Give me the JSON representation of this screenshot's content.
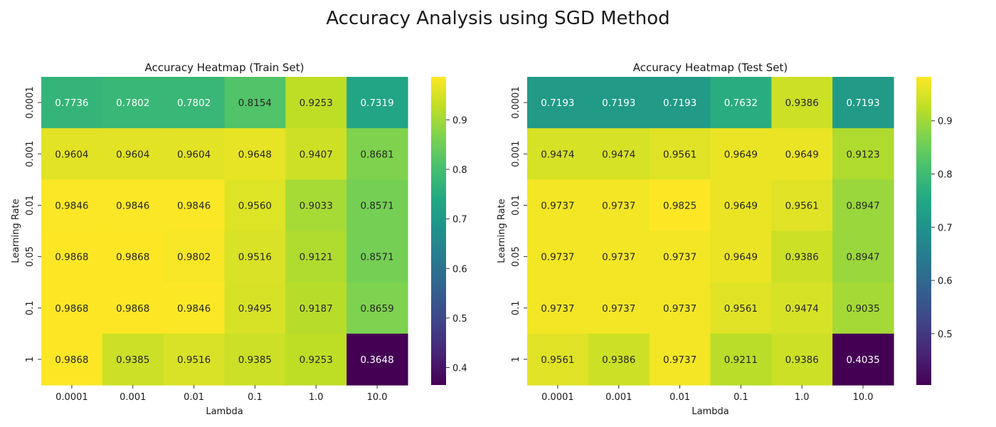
{
  "figure": {
    "title": "Accuracy Analysis using SGD Method"
  },
  "chart_data": [
    {
      "type": "heatmap",
      "title": "Accuracy Heatmap (Train Set)",
      "xlabel": "Lambda",
      "ylabel": "Learning Rate",
      "x_categories": [
        "0.0001",
        "0.001",
        "0.01",
        "0.1",
        "1.0",
        "10.0"
      ],
      "y_categories": [
        "0.0001",
        "0.001",
        "0.01",
        "0.05",
        "0.1",
        "1"
      ],
      "values": [
        [
          0.7736,
          0.7802,
          0.7802,
          0.8154,
          0.9253,
          0.7319
        ],
        [
          0.9604,
          0.9604,
          0.9604,
          0.9648,
          0.9407,
          0.8681
        ],
        [
          0.9846,
          0.9846,
          0.9846,
          0.956,
          0.9033,
          0.8571
        ],
        [
          0.9868,
          0.9868,
          0.9802,
          0.9516,
          0.9121,
          0.8571
        ],
        [
          0.9868,
          0.9868,
          0.9846,
          0.9495,
          0.9187,
          0.8659
        ],
        [
          0.9868,
          0.9385,
          0.9516,
          0.9385,
          0.9253,
          0.3648
        ]
      ],
      "colormap": "viridis",
      "colorbar_range": [
        0.3648,
        0.9868
      ],
      "colorbar_ticks": [
        0.4,
        0.5,
        0.6,
        0.7,
        0.8,
        0.9
      ],
      "colorbar_tick_labels": [
        "0.4",
        "0.5",
        "0.6",
        "0.7",
        "0.8",
        "0.9"
      ]
    },
    {
      "type": "heatmap",
      "title": "Accuracy Heatmap (Test Set)",
      "xlabel": "Lambda",
      "ylabel": "Learning Rate",
      "x_categories": [
        "0.0001",
        "0.001",
        "0.01",
        "0.1",
        "1.0",
        "10.0"
      ],
      "y_categories": [
        "0.0001",
        "0.001",
        "0.01",
        "0.05",
        "0.1",
        "1"
      ],
      "values": [
        [
          0.7193,
          0.7193,
          0.7193,
          0.7632,
          0.9386,
          0.7193
        ],
        [
          0.9474,
          0.9474,
          0.9561,
          0.9649,
          0.9649,
          0.9123
        ],
        [
          0.9737,
          0.9737,
          0.9825,
          0.9649,
          0.9561,
          0.8947
        ],
        [
          0.9737,
          0.9737,
          0.9737,
          0.9649,
          0.9386,
          0.8947
        ],
        [
          0.9737,
          0.9737,
          0.9737,
          0.9561,
          0.9474,
          0.9035
        ],
        [
          0.9561,
          0.9386,
          0.9737,
          0.9211,
          0.9386,
          0.4035
        ]
      ],
      "colormap": "viridis",
      "colorbar_range": [
        0.4035,
        0.9825
      ],
      "colorbar_ticks": [
        0.5,
        0.6,
        0.7,
        0.8,
        0.9
      ],
      "colorbar_tick_labels": [
        "0.5",
        "0.6",
        "0.7",
        "0.8",
        "0.9"
      ]
    }
  ]
}
